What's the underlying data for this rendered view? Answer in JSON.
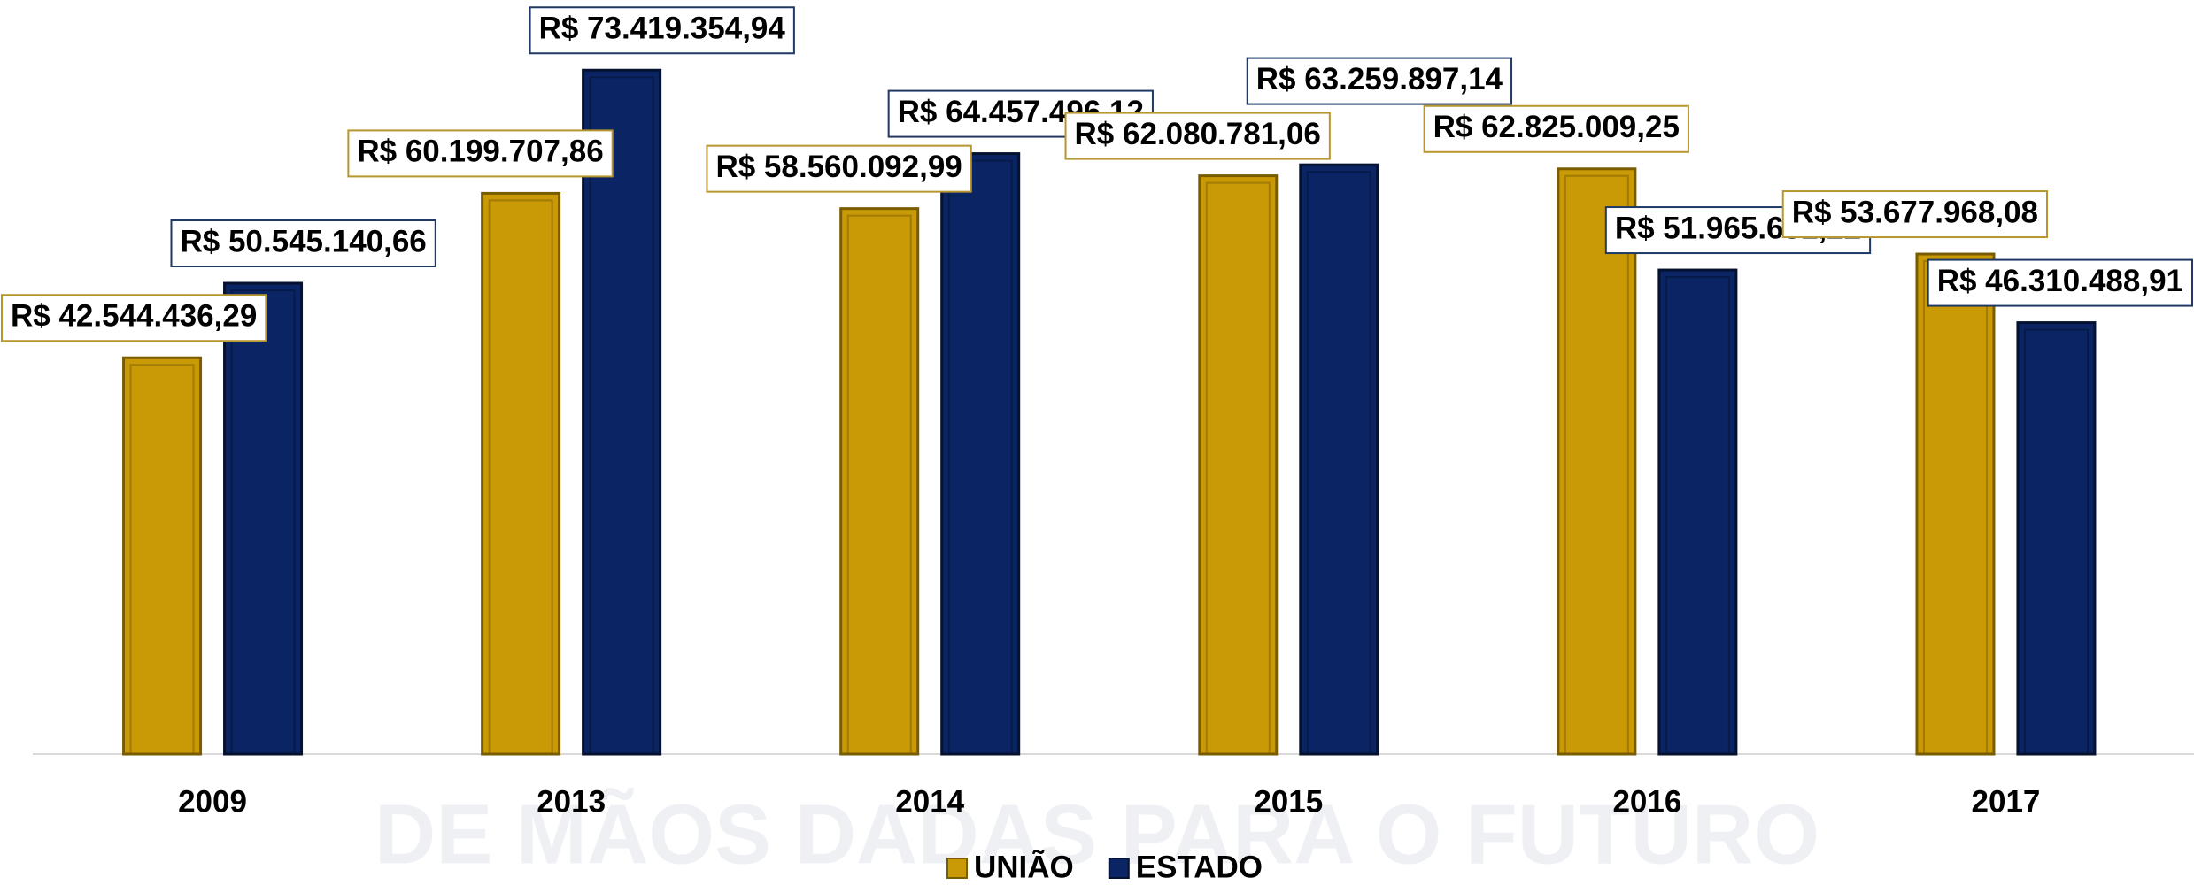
{
  "chart_data": {
    "type": "bar",
    "watermark": "DE MÃOS DADAS PARA O FUTURO",
    "categories": [
      "2009",
      "2013",
      "2014",
      "2015",
      "2016",
      "2017"
    ],
    "series": [
      {
        "name": "UNIÃO",
        "color": "#c99a06",
        "values": [
          42544436.29,
          60199707.86,
          58560092.99,
          62080781.06,
          62825009.25,
          53677968.08
        ],
        "value_labels": [
          "R$ 42.544.436,29",
          "R$ 60.199.707,86",
          "R$ 58.560.092,99",
          "R$ 62.080.781,06",
          "R$ 62.825.009,25",
          "R$ 53.677.968,08"
        ]
      },
      {
        "name": "ESTADO",
        "color": "#0b2463",
        "values": [
          50545140.66,
          73419354.94,
          64457496.12,
          63259897.14,
          51965631.22,
          46310488.91
        ],
        "value_labels": [
          "R$ 50.545.140,66",
          "R$ 73.419.354,94",
          "R$ 64.457.496,12",
          "R$ 63.259.897,14",
          "R$ 51.965.631,22",
          "R$ 46.310.488,91"
        ]
      }
    ],
    "ylim": [
      0,
      80000000
    ],
    "legend": "bottom"
  }
}
